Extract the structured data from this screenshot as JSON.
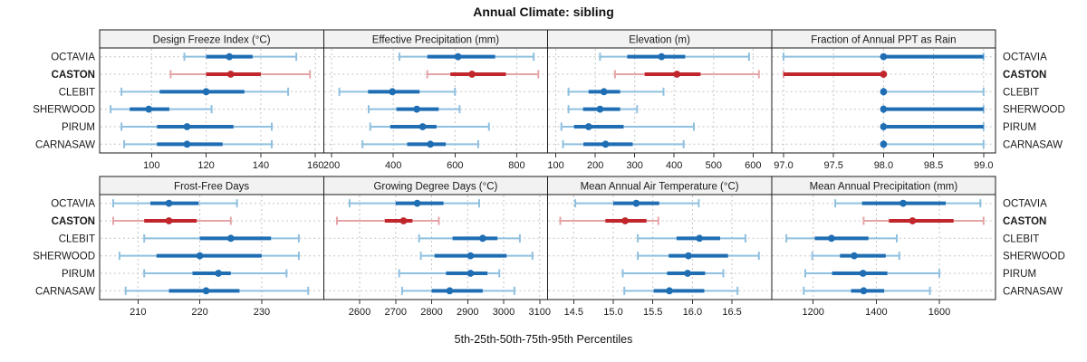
{
  "title": "Annual Climate: sibling",
  "footer": "5th-25th-50th-75th-95th Percentiles",
  "sites": [
    "OCTAVIA",
    "CASTON",
    "CLEBIT",
    "SHERWOOD",
    "PIRUM",
    "CARNASAW"
  ],
  "highlight_site": "CASTON",
  "colors": {
    "series": "#1F6EB4",
    "series_light": "#8FC0DF",
    "highlight": "#C0262B",
    "highlight_light": "#E4A5A7",
    "grid": "#C4C4C4",
    "strip_bg": "#F2F2F2",
    "border": "#1A1A1A",
    "tick": "#333333",
    "text": "#1A1A1A"
  },
  "chart_data": {
    "type": "dotplot-percentiles",
    "percentiles": [
      5,
      25,
      50,
      75,
      95
    ],
    "layout": {
      "rows": 2,
      "cols": 4,
      "grid": true,
      "site_labels": "left-and-right"
    },
    "panels": [
      {
        "title": "Design Freeze Index (°C)",
        "xlim": [
          81,
          163
        ],
        "ticks": [
          100,
          120,
          140,
          160
        ],
        "tick_labels": [
          "100",
          "120",
          "140",
          "160"
        ],
        "values": {
          "OCTAVIA": [
            112,
            120,
            128.5,
            137,
            153
          ],
          "CASTON": [
            107,
            120,
            129,
            140,
            158
          ],
          "CLEBIT": [
            89,
            103,
            120,
            134,
            150
          ],
          "SHERWOOD": [
            85,
            92,
            99,
            106.5,
            122
          ],
          "PIRUM": [
            89,
            102,
            113,
            130,
            144
          ],
          "CARNASAW": [
            90,
            102,
            113,
            126,
            144
          ]
        }
      },
      {
        "title": "Effective Precipitation (mm)",
        "xlim": [
          174,
          900
        ],
        "ticks": [
          200,
          400,
          600,
          800
        ],
        "tick_labels": [
          "200",
          "400",
          "600",
          "800"
        ],
        "values": {
          "OCTAVIA": [
            420,
            510,
            610,
            730,
            855
          ],
          "CASTON": [
            510,
            585,
            655,
            765,
            870
          ],
          "CLEBIT": [
            225,
            318,
            397,
            485,
            600
          ],
          "SHERWOOD": [
            320,
            410,
            476,
            547,
            615
          ],
          "PIRUM": [
            325,
            390,
            495,
            540,
            710
          ],
          "CARNASAW": [
            300,
            445,
            520,
            570,
            675
          ]
        }
      },
      {
        "title": "Elevation (m)",
        "xlim": [
          79,
          647
        ],
        "ticks": [
          100,
          200,
          300,
          400,
          500,
          600
        ],
        "tick_labels": [
          "100",
          "200",
          "300",
          "400",
          "500",
          "600"
        ],
        "values": {
          "OCTAVIA": [
            212,
            281,
            368,
            428,
            590
          ],
          "CASTON": [
            250,
            325,
            407,
            467,
            615
          ],
          "CLEBIT": [
            132,
            183,
            222,
            263,
            373
          ],
          "SHERWOOD": [
            132,
            169,
            212,
            263,
            306
          ],
          "PIRUM": [
            114,
            146,
            183,
            272,
            450
          ],
          "CARNASAW": [
            118,
            170,
            226,
            295,
            424
          ]
        }
      },
      {
        "title": "Fraction of Annual PPT as Rain",
        "xlim": [
          96.88,
          99.12
        ],
        "ticks": [
          97.0,
          97.5,
          98.0,
          98.5,
          99.0
        ],
        "tick_labels": [
          "97.0",
          "97.5",
          "98.0",
          "98.5",
          "99.0"
        ],
        "values": {
          "OCTAVIA": [
            97,
            98,
            98,
            99,
            99
          ],
          "CASTON": [
            97,
            97,
            98,
            98,
            98
          ],
          "CLEBIT": [
            98,
            98,
            98,
            98,
            99
          ],
          "SHERWOOD": [
            98,
            98,
            98,
            99,
            99
          ],
          "PIRUM": [
            98,
            98,
            98,
            99,
            99
          ],
          "CARNASAW": [
            98,
            98,
            98,
            98,
            99
          ]
        }
      },
      {
        "title": "Frost-Free Days",
        "xlim": [
          203.8,
          240
        ],
        "ticks": [
          210,
          220,
          230
        ],
        "tick_labels": [
          "210",
          "220",
          "230"
        ],
        "values": {
          "OCTAVIA": [
            206,
            212,
            215,
            219.8,
            226
          ],
          "CASTON": [
            206,
            211,
            215,
            219.5,
            225
          ],
          "CLEBIT": [
            211,
            220,
            225,
            231.5,
            236
          ],
          "SHERWOOD": [
            207,
            213,
            220,
            230,
            236
          ],
          "PIRUM": [
            211,
            218.8,
            223,
            225,
            234
          ],
          "CARNASAW": [
            208,
            215,
            221,
            226.4,
            237.5
          ]
        }
      },
      {
        "title": "Growing Degree Days (°C)",
        "xlim": [
          2500,
          3122
        ],
        "ticks": [
          2600,
          2700,
          2800,
          2900,
          3000,
          3100
        ],
        "tick_labels": [
          "2600",
          "2700",
          "2800",
          "2900",
          "3000",
          "3100"
        ],
        "values": {
          "OCTAVIA": [
            2572,
            2700,
            2760,
            2833,
            2932
          ],
          "CASTON": [
            2537,
            2670,
            2722,
            2747,
            2820
          ],
          "CLEBIT": [
            2765,
            2858,
            2942,
            2983,
            3045
          ],
          "SHERWOOD": [
            2770,
            2808,
            2908,
            3008,
            3080
          ],
          "PIRUM": [
            2710,
            2840,
            2908,
            2955,
            2988
          ],
          "CARNASAW": [
            2718,
            2800,
            2850,
            2942,
            3030
          ]
        }
      },
      {
        "title": "Mean Annual Air Temperature (°C)",
        "xlim": [
          14.17,
          17.0
        ],
        "ticks": [
          14.5,
          15.0,
          15.5,
          16.0,
          16.5
        ],
        "tick_labels": [
          "14.5",
          "15.0",
          "15.5",
          "16.0",
          "16.5"
        ],
        "values": {
          "OCTAVIA": [
            14.52,
            15.0,
            15.29,
            15.58,
            16.08
          ],
          "CASTON": [
            14.33,
            14.9,
            15.15,
            15.42,
            15.57
          ],
          "CLEBIT": [
            15.31,
            15.8,
            16.09,
            16.35,
            16.67
          ],
          "SHERWOOD": [
            15.31,
            15.7,
            15.95,
            16.45,
            16.84
          ],
          "PIRUM": [
            15.12,
            15.68,
            15.94,
            16.16,
            16.39
          ],
          "CARNASAW": [
            15.14,
            15.51,
            15.71,
            16.15,
            16.57
          ]
        }
      },
      {
        "title": "Mean Annual Precipitation (mm)",
        "xlim": [
          1068,
          1778
        ],
        "ticks": [
          1200,
          1400,
          1600
        ],
        "tick_labels": [
          "1200",
          "1400",
          "1600"
        ],
        "values": {
          "OCTAVIA": [
            1270,
            1355,
            1485,
            1620,
            1730
          ],
          "CASTON": [
            1360,
            1440,
            1515,
            1645,
            1740
          ],
          "CLEBIT": [
            1115,
            1205,
            1258,
            1375,
            1465
          ],
          "SHERWOOD": [
            1197,
            1285,
            1330,
            1430,
            1473
          ],
          "PIRUM": [
            1175,
            1260,
            1358,
            1435,
            1600
          ],
          "CARNASAW": [
            1170,
            1320,
            1360,
            1425,
            1570
          ]
        }
      }
    ]
  }
}
